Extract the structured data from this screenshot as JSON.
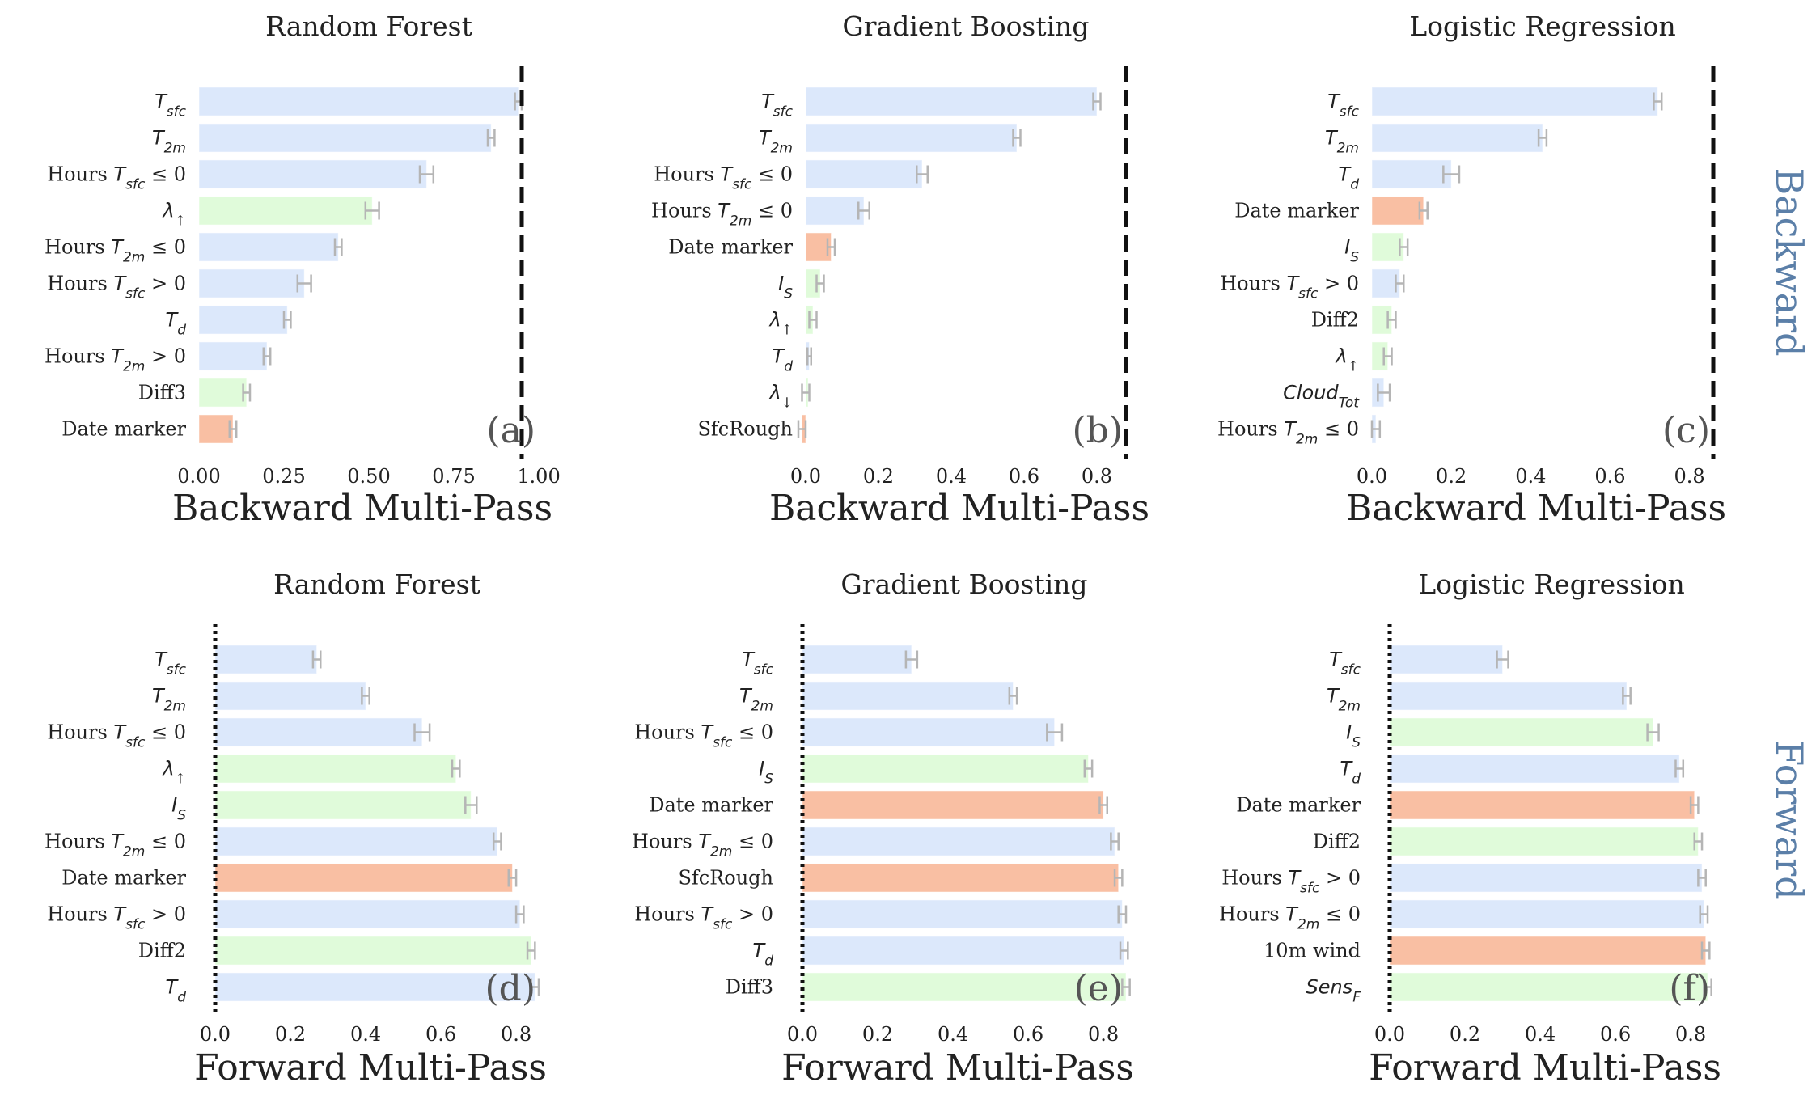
{
  "row_labels": {
    "backward": "Backward",
    "forward": "Forward"
  },
  "colors": {
    "blue": "#dce8fb",
    "green": "#e0fbda",
    "red": "#f9bfa3",
    "error_bar": "#b5b5b5"
  },
  "chart_data": [
    {
      "type": "bar",
      "orientation": "horizontal",
      "panel": "(a)",
      "title": "Random Forest",
      "xlabel": "Backward Multi-Pass",
      "xlim": [
        0,
        1.0
      ],
      "xticks": [
        0.0,
        0.25,
        0.5,
        0.75,
        1.0
      ],
      "tick_labels": [
        "0.00",
        "0.25",
        "0.50",
        "0.75",
        "1.00"
      ],
      "reference_line": {
        "value": 0.95,
        "style": "dashed"
      },
      "categories": [
        "T_sfc",
        "T_2m",
        "Hours T_sfc ≤ 0",
        "λ↑",
        "Hours T_2m ≤ 0",
        "Hours T_sfc > 0",
        "T_d",
        "Hours T_2m > 0",
        "Diff3",
        "Date marker"
      ],
      "values": [
        0.94,
        0.86,
        0.67,
        0.51,
        0.41,
        0.31,
        0.26,
        0.2,
        0.14,
        0.1
      ],
      "errors": [
        0.01,
        0.01,
        0.02,
        0.02,
        0.01,
        0.02,
        0.01,
        0.01,
        0.01,
        0.01
      ],
      "colors": [
        "blue",
        "blue",
        "blue",
        "green",
        "blue",
        "blue",
        "blue",
        "blue",
        "green",
        "red"
      ]
    },
    {
      "type": "bar",
      "orientation": "horizontal",
      "panel": "(b)",
      "title": "Gradient Boosting",
      "xlabel": "Backward Multi-Pass",
      "xlim": [
        0,
        0.88
      ],
      "xticks": [
        0.0,
        0.2,
        0.4,
        0.6,
        0.8
      ],
      "tick_labels": [
        "0.0",
        "0.2",
        "0.4",
        "0.6",
        "0.8"
      ],
      "reference_line": {
        "value": 0.88,
        "style": "dashed"
      },
      "categories": [
        "T_sfc",
        "T_2m",
        "Hours T_sfc ≤ 0",
        "Hours T_2m ≤ 0",
        "Date marker",
        "I_S",
        "λ↑",
        "T_d",
        "λ↓",
        "SfcRough"
      ],
      "values": [
        0.8,
        0.58,
        0.32,
        0.16,
        0.07,
        0.04,
        0.02,
        0.01,
        0.0,
        -0.01
      ],
      "errors": [
        0.01,
        0.01,
        0.015,
        0.015,
        0.01,
        0.01,
        0.01,
        0.005,
        0.01,
        0.01
      ],
      "colors": [
        "blue",
        "blue",
        "blue",
        "blue",
        "red",
        "green",
        "green",
        "blue",
        "green",
        "red"
      ]
    },
    {
      "type": "bar",
      "orientation": "horizontal",
      "panel": "(c)",
      "title": "Logistic Regression",
      "xlabel": "Backward Multi-Pass",
      "xlim": [
        0,
        0.86
      ],
      "xticks": [
        0.0,
        0.2,
        0.4,
        0.6,
        0.8
      ],
      "tick_labels": [
        "0.0",
        "0.2",
        "0.4",
        "0.6",
        "0.8"
      ],
      "reference_line": {
        "value": 0.86,
        "style": "dashed"
      },
      "categories": [
        "T_sfc",
        "T_2m",
        "T_d",
        "Date marker",
        "I_S",
        "Hours T_sfc > 0",
        "Diff2",
        "λ↑",
        "Cloud_Tot",
        "Hours T_2m ≤ 0"
      ],
      "values": [
        0.72,
        0.43,
        0.2,
        0.13,
        0.08,
        0.07,
        0.05,
        0.04,
        0.03,
        0.01
      ],
      "errors": [
        0.01,
        0.01,
        0.02,
        0.01,
        0.01,
        0.01,
        0.01,
        0.01,
        0.015,
        0.01
      ],
      "colors": [
        "blue",
        "blue",
        "blue",
        "red",
        "green",
        "blue",
        "green",
        "green",
        "blue",
        "blue"
      ]
    },
    {
      "type": "bar",
      "orientation": "horizontal",
      "panel": "(d)",
      "title": "Random Forest",
      "xlabel": "Forward Multi-Pass",
      "xlim": [
        0,
        0.86
      ],
      "xticks": [
        0.0,
        0.2,
        0.4,
        0.6,
        0.8
      ],
      "tick_labels": [
        "0.0",
        "0.2",
        "0.4",
        "0.6",
        "0.8"
      ],
      "reference_line": {
        "value": 0.0,
        "style": "dotted"
      },
      "categories": [
        "T_sfc",
        "T_2m",
        "Hours T_sfc ≤ 0",
        "λ↑",
        "I_S",
        "Hours T_2m ≤ 0",
        "Date marker",
        "Hours T_sfc > 0",
        "Diff2",
        "T_d"
      ],
      "values": [
        0.27,
        0.4,
        0.55,
        0.64,
        0.68,
        0.75,
        0.79,
        0.81,
        0.84,
        0.85
      ],
      "errors": [
        0.01,
        0.01,
        0.02,
        0.01,
        0.015,
        0.01,
        0.01,
        0.01,
        0.01,
        0.01
      ],
      "colors": [
        "blue",
        "blue",
        "blue",
        "green",
        "green",
        "blue",
        "red",
        "blue",
        "green",
        "blue"
      ]
    },
    {
      "type": "bar",
      "orientation": "horizontal",
      "panel": "(e)",
      "title": "Gradient Boosting",
      "xlabel": "Forward Multi-Pass",
      "xlim": [
        0,
        0.86
      ],
      "xticks": [
        0.0,
        0.2,
        0.4,
        0.6,
        0.8
      ],
      "tick_labels": [
        "0.0",
        "0.2",
        "0.4",
        "0.6",
        "0.8"
      ],
      "reference_line": {
        "value": 0.0,
        "style": "dotted"
      },
      "categories": [
        "T_sfc",
        "T_2m",
        "Hours T_sfc ≤ 0",
        "I_S",
        "Date marker",
        "Hours T_2m ≤ 0",
        "SfcRough",
        "Hours T_sfc > 0",
        "T_d",
        "Diff3"
      ],
      "values": [
        0.29,
        0.56,
        0.67,
        0.76,
        0.8,
        0.83,
        0.84,
        0.85,
        0.855,
        0.86
      ],
      "errors": [
        0.015,
        0.01,
        0.02,
        0.01,
        0.01,
        0.01,
        0.01,
        0.01,
        0.01,
        0.01
      ],
      "colors": [
        "blue",
        "blue",
        "blue",
        "green",
        "red",
        "blue",
        "red",
        "blue",
        "blue",
        "green"
      ]
    },
    {
      "type": "bar",
      "orientation": "horizontal",
      "panel": "(f)",
      "title": "Logistic Regression",
      "xlabel": "Forward Multi-Pass",
      "xlim": [
        0,
        0.86
      ],
      "xticks": [
        0.0,
        0.2,
        0.4,
        0.6,
        0.8
      ],
      "tick_labels": [
        "0.0",
        "0.2",
        "0.4",
        "0.6",
        "0.8"
      ],
      "reference_line": {
        "value": 0.0,
        "style": "dotted"
      },
      "categories": [
        "T_sfc",
        "T_2m",
        "I_S",
        "T_d",
        "Date marker",
        "Diff2",
        "Hours T_sfc > 0",
        "Hours T_2m ≤ 0",
        "10m wind",
        "Sens_F"
      ],
      "values": [
        0.3,
        0.63,
        0.7,
        0.77,
        0.81,
        0.82,
        0.83,
        0.835,
        0.84,
        0.845
      ],
      "errors": [
        0.015,
        0.01,
        0.015,
        0.01,
        0.01,
        0.01,
        0.01,
        0.01,
        0.01,
        0.01
      ],
      "colors": [
        "blue",
        "blue",
        "green",
        "blue",
        "red",
        "green",
        "blue",
        "blue",
        "red",
        "green"
      ]
    }
  ]
}
